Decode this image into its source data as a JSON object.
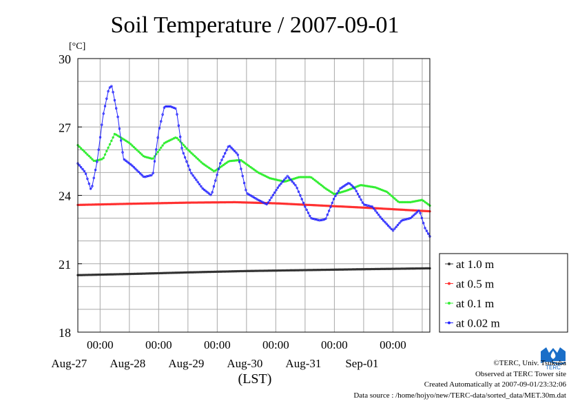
{
  "chart_data": {
    "type": "line",
    "title": "Soil Temperature / 2007-09-01",
    "ylabel": "[°C]",
    "xlabel": "(LST)",
    "ylim": [
      18,
      30
    ],
    "y_ticks": [
      18,
      21,
      24,
      27,
      30
    ],
    "x_unit": "days since Aug-26 00:00 LST",
    "xlim": [
      0.62,
      6.63
    ],
    "x_ticks": [
      {
        "x": 1,
        "label": "00:00",
        "date": "Aug-27"
      },
      {
        "x": 2,
        "label": "00:00",
        "date": "Aug-28"
      },
      {
        "x": 3,
        "label": "00:00",
        "date": "Aug-29"
      },
      {
        "x": 4,
        "label": "00:00",
        "date": "Aug-30"
      },
      {
        "x": 5,
        "label": "00:00",
        "date": "Aug-31"
      },
      {
        "x": 6,
        "label": "00:00",
        "date": "Sep-01"
      }
    ],
    "grid": true,
    "legend_position": "right",
    "series": [
      {
        "name": "at 1.0 m",
        "color": "#333333",
        "x": [
          0.62,
          1.5,
          2.5,
          3.5,
          4.5,
          5.5,
          6.63
        ],
        "y": [
          20.5,
          20.55,
          20.62,
          20.68,
          20.72,
          20.76,
          20.8
        ]
      },
      {
        "name": "at 0.5 m",
        "color": "#ff3030",
        "x": [
          0.62,
          1.5,
          2.5,
          3.3,
          4.0,
          4.8,
          5.6,
          6.63
        ],
        "y": [
          23.58,
          23.63,
          23.68,
          23.7,
          23.65,
          23.55,
          23.45,
          23.3
        ]
      },
      {
        "name": "at 0.1 m",
        "color": "#33ee33",
        "x": [
          0.62,
          0.9,
          1.05,
          1.25,
          1.5,
          1.75,
          1.9,
          2.1,
          2.3,
          2.5,
          2.75,
          2.95,
          3.2,
          3.4,
          3.7,
          3.9,
          4.15,
          4.4,
          4.6,
          4.85,
          5.0,
          5.2,
          5.45,
          5.7,
          5.9,
          6.1,
          6.3,
          6.5,
          6.63
        ],
        "y": [
          26.2,
          25.5,
          25.6,
          26.7,
          26.3,
          25.7,
          25.6,
          26.3,
          26.55,
          26.0,
          25.4,
          25.05,
          25.5,
          25.55,
          25.0,
          24.75,
          24.6,
          24.8,
          24.8,
          24.3,
          24.05,
          24.2,
          24.45,
          24.35,
          24.15,
          23.7,
          23.7,
          23.8,
          23.55
        ]
      },
      {
        "name": "at 0.02 m",
        "color": "#2222ff",
        "x": [
          0.62,
          0.75,
          0.85,
          0.95,
          1.05,
          1.15,
          1.2,
          1.3,
          1.4,
          1.55,
          1.75,
          1.9,
          2.0,
          2.1,
          2.2,
          2.3,
          2.4,
          2.55,
          2.75,
          2.9,
          3.05,
          3.2,
          3.35,
          3.5,
          3.7,
          3.85,
          3.95,
          4.05,
          4.2,
          4.35,
          4.5,
          4.6,
          4.75,
          4.85,
          5.0,
          5.1,
          5.25,
          5.35,
          5.5,
          5.65,
          5.8,
          6.0,
          6.15,
          6.3,
          6.45,
          6.55,
          6.63
        ],
        "y": [
          25.4,
          25.0,
          24.2,
          25.5,
          27.5,
          28.7,
          28.8,
          27.5,
          25.6,
          25.3,
          24.8,
          24.9,
          26.8,
          27.9,
          27.9,
          27.8,
          26.0,
          25.0,
          24.3,
          24.0,
          25.4,
          26.2,
          25.8,
          24.1,
          23.8,
          23.6,
          24.0,
          24.4,
          24.85,
          24.4,
          23.5,
          23.0,
          22.9,
          22.95,
          23.9,
          24.3,
          24.55,
          24.3,
          23.6,
          23.5,
          23.0,
          22.45,
          22.9,
          23.0,
          23.35,
          22.55,
          22.2
        ]
      }
    ]
  },
  "credits": {
    "copyright": "©TERC, Univ. Tsukuba",
    "observed": "Observed at TERC Tower site",
    "created": "Created Automatically at 2007-09-01/23:32:06",
    "source": "Data source : /home/hojyo/new/TERC-data/sorted_data/MET.30m.dat"
  },
  "logo": {
    "text": "TERC",
    "color": "#1a6ec8"
  }
}
